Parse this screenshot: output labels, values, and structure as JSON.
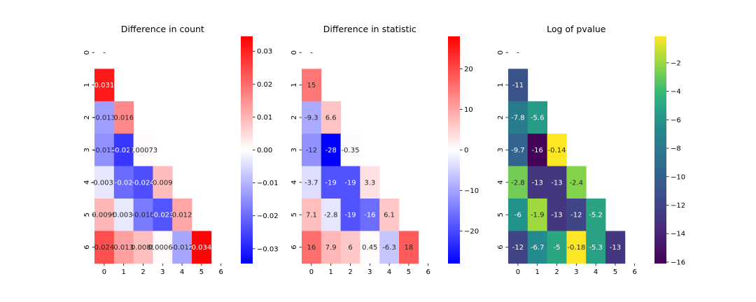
{
  "chart_data": [
    {
      "type": "heatmap",
      "title": "Difference in count",
      "x_ticks": [
        "0",
        "1",
        "2",
        "3",
        "4",
        "5",
        "6"
      ],
      "y_ticks": [
        "0",
        "1",
        "2",
        "3",
        "4",
        "5",
        "6"
      ],
      "colormap": "bwr",
      "colorbar_range": [
        -0.0345,
        0.0345
      ],
      "colorbar_ticks": [
        "0.03",
        "0.02",
        "0.01",
        "0.00",
        "−0.01",
        "−0.02",
        "−0.03"
      ],
      "colorbar_tick_values": [
        0.03,
        0.02,
        0.01,
        0.0,
        -0.01,
        -0.02,
        -0.03
      ],
      "cells": [
        {
          "row": 0,
          "col": 0,
          "label": "-",
          "value": null
        },
        {
          "row": 1,
          "col": 0,
          "label": "0.031",
          "value": 0.031
        },
        {
          "row": 2,
          "col": 0,
          "label": "-0.013",
          "value": -0.013
        },
        {
          "row": 2,
          "col": 1,
          "label": "0.016",
          "value": 0.016
        },
        {
          "row": 3,
          "col": 0,
          "label": "-0.015",
          "value": -0.015
        },
        {
          "row": 3,
          "col": 1,
          "label": "-0.027",
          "value": -0.027
        },
        {
          "row": 3,
          "col": 2,
          "label": "0.00073",
          "value": 0.00073
        },
        {
          "row": 4,
          "col": 0,
          "label": "-0.0032",
          "value": -0.0032
        },
        {
          "row": 4,
          "col": 1,
          "label": "-0.02",
          "value": -0.02
        },
        {
          "row": 4,
          "col": 2,
          "label": "-0.024",
          "value": -0.024
        },
        {
          "row": 4,
          "col": 3,
          "label": "0.009",
          "value": 0.009
        },
        {
          "row": 5,
          "col": 0,
          "label": "0.0099",
          "value": 0.0099
        },
        {
          "row": 5,
          "col": 1,
          "label": "-0.0031",
          "value": -0.0031
        },
        {
          "row": 5,
          "col": 2,
          "label": "-0.018",
          "value": -0.018
        },
        {
          "row": 5,
          "col": 3,
          "label": "-0.023",
          "value": -0.023
        },
        {
          "row": 5,
          "col": 4,
          "label": "0.012",
          "value": 0.012
        },
        {
          "row": 6,
          "col": 0,
          "label": "0.024",
          "value": 0.024
        },
        {
          "row": 6,
          "col": 1,
          "label": "0.013",
          "value": 0.013
        },
        {
          "row": 6,
          "col": 2,
          "label": "0.0088",
          "value": 0.0088
        },
        {
          "row": 6,
          "col": 3,
          "label": "0.00068",
          "value": 0.00068
        },
        {
          "row": 6,
          "col": 4,
          "label": "-0.012",
          "value": -0.012
        },
        {
          "row": 6,
          "col": 5,
          "label": "0.034",
          "value": 0.034
        }
      ]
    },
    {
      "type": "heatmap",
      "title": "Difference in statistic",
      "x_ticks": [
        "0",
        "1",
        "2",
        "3",
        "4",
        "5",
        "6"
      ],
      "y_ticks": [
        "0",
        "1",
        "2",
        "3",
        "4",
        "5",
        "6"
      ],
      "colormap": "bwr",
      "colorbar_range": [
        -28,
        28
      ],
      "colorbar_ticks": [
        "20",
        "10",
        "0",
        "−10",
        "−20"
      ],
      "colorbar_tick_values": [
        20,
        10,
        0,
        -10,
        -20
      ],
      "cells": [
        {
          "row": 0,
          "col": 0,
          "label": "-",
          "value": null
        },
        {
          "row": 1,
          "col": 0,
          "label": "15",
          "value": 15
        },
        {
          "row": 2,
          "col": 0,
          "label": "-9.3",
          "value": -9.3
        },
        {
          "row": 2,
          "col": 1,
          "label": "6.6",
          "value": 6.6
        },
        {
          "row": 3,
          "col": 0,
          "label": "-12",
          "value": -12
        },
        {
          "row": 3,
          "col": 1,
          "label": "-28",
          "value": -28
        },
        {
          "row": 3,
          "col": 2,
          "label": "-0.35",
          "value": -0.35
        },
        {
          "row": 4,
          "col": 0,
          "label": "-3.7",
          "value": -3.7
        },
        {
          "row": 4,
          "col": 1,
          "label": "-19",
          "value": -19
        },
        {
          "row": 4,
          "col": 2,
          "label": "-19",
          "value": -19
        },
        {
          "row": 4,
          "col": 3,
          "label": "3.3",
          "value": 3.3
        },
        {
          "row": 5,
          "col": 0,
          "label": "7.1",
          "value": 7.1
        },
        {
          "row": 5,
          "col": 1,
          "label": "-2.8",
          "value": -2.8
        },
        {
          "row": 5,
          "col": 2,
          "label": "-19",
          "value": -19
        },
        {
          "row": 5,
          "col": 3,
          "label": "-16",
          "value": -16
        },
        {
          "row": 5,
          "col": 4,
          "label": "6.1",
          "value": 6.1
        },
        {
          "row": 6,
          "col": 0,
          "label": "16",
          "value": 16
        },
        {
          "row": 6,
          "col": 1,
          "label": "7.9",
          "value": 7.9
        },
        {
          "row": 6,
          "col": 2,
          "label": "6",
          "value": 6
        },
        {
          "row": 6,
          "col": 3,
          "label": "0.45",
          "value": 0.45
        },
        {
          "row": 6,
          "col": 4,
          "label": "-6.3",
          "value": -6.3
        },
        {
          "row": 6,
          "col": 5,
          "label": "18",
          "value": 18
        }
      ]
    },
    {
      "type": "heatmap",
      "title": "Log of pvalue",
      "x_ticks": [
        "0",
        "1",
        "2",
        "3",
        "4",
        "5",
        "6"
      ],
      "y_ticks": [
        "0",
        "1",
        "2",
        "3",
        "4",
        "5",
        "6"
      ],
      "colormap": "viridis",
      "colorbar_range": [
        -16.1,
        -0.14
      ],
      "colorbar_ticks": [
        "−2",
        "−4",
        "−6",
        "−8",
        "−10",
        "−12",
        "−14",
        "−16"
      ],
      "colorbar_tick_values": [
        -2,
        -4,
        -6,
        -8,
        -10,
        -12,
        -14,
        -16
      ],
      "cells": [
        {
          "row": 0,
          "col": 0,
          "label": "-",
          "value": null
        },
        {
          "row": 1,
          "col": 0,
          "label": "-11",
          "value": -11
        },
        {
          "row": 2,
          "col": 0,
          "label": "-7.8",
          "value": -7.8
        },
        {
          "row": 2,
          "col": 1,
          "label": "-5.6",
          "value": -5.6
        },
        {
          "row": 3,
          "col": 0,
          "label": "-9.7",
          "value": -9.7
        },
        {
          "row": 3,
          "col": 1,
          "label": "-16",
          "value": -16
        },
        {
          "row": 3,
          "col": 2,
          "label": "-0.14",
          "value": -0.14
        },
        {
          "row": 4,
          "col": 0,
          "label": "-2.8",
          "value": -2.8
        },
        {
          "row": 4,
          "col": 1,
          "label": "-13",
          "value": -13
        },
        {
          "row": 4,
          "col": 2,
          "label": "-13",
          "value": -13
        },
        {
          "row": 4,
          "col": 3,
          "label": "-2.4",
          "value": -2.4
        },
        {
          "row": 5,
          "col": 0,
          "label": "-6",
          "value": -6
        },
        {
          "row": 5,
          "col": 1,
          "label": "-1.9",
          "value": -1.9
        },
        {
          "row": 5,
          "col": 2,
          "label": "-13",
          "value": -13
        },
        {
          "row": 5,
          "col": 3,
          "label": "-12",
          "value": -12
        },
        {
          "row": 5,
          "col": 4,
          "label": "-5.2",
          "value": -5.2
        },
        {
          "row": 6,
          "col": 0,
          "label": "-12",
          "value": -12
        },
        {
          "row": 6,
          "col": 1,
          "label": "-6.7",
          "value": -6.7
        },
        {
          "row": 6,
          "col": 2,
          "label": "-5",
          "value": -5
        },
        {
          "row": 6,
          "col": 3,
          "label": "-0.18",
          "value": -0.18
        },
        {
          "row": 6,
          "col": 4,
          "label": "-5.3",
          "value": -5.3
        },
        {
          "row": 6,
          "col": 5,
          "label": "-13",
          "value": -13
        }
      ]
    }
  ]
}
